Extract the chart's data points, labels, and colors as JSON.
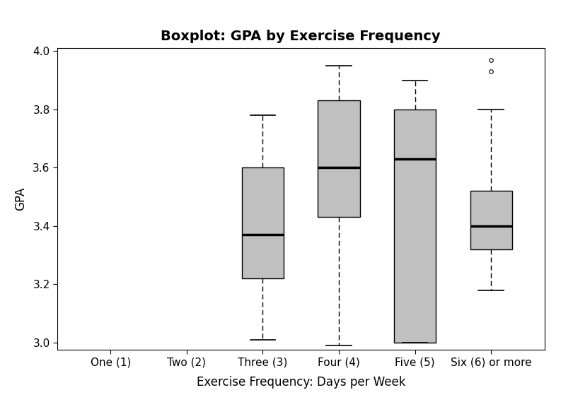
{
  "title": "Boxplot: GPA by Exercise Frequency",
  "xlabel": "Exercise Frequency: Days per Week",
  "ylabel": "GPA",
  "categories": [
    "One (1)",
    "Two (2)",
    "Three (3)",
    "Four (4)",
    "Five (5)",
    "Six (6) or more"
  ],
  "ylim": [
    2.975,
    4.01
  ],
  "yticks": [
    3.0,
    3.2,
    3.4,
    3.6,
    3.8,
    4.0
  ],
  "box_color": "#c0c0c0",
  "median_color": "#000000",
  "whisker_color": "#000000",
  "boxes": {
    "Three (3)": {
      "q1": 3.22,
      "median": 3.37,
      "q3": 3.6,
      "whisker_low": 3.01,
      "whisker_high": 3.78,
      "outliers": []
    },
    "Four (4)": {
      "q1": 3.43,
      "median": 3.6,
      "q3": 3.83,
      "whisker_low": 2.99,
      "whisker_high": 3.95,
      "outliers": []
    },
    "Five (5)": {
      "q1": 3.0,
      "median": 3.63,
      "q3": 3.8,
      "whisker_low": 3.0,
      "whisker_high": 3.9,
      "outliers": []
    },
    "Six (6) or more": {
      "q1": 3.32,
      "median": 3.4,
      "q3": 3.52,
      "whisker_low": 3.18,
      "whisker_high": 3.8,
      "outliers": [
        3.93,
        3.97
      ]
    }
  },
  "box_width": 0.55,
  "title_fontsize": 14,
  "axis_fontsize": 12,
  "tick_fontsize": 11,
  "background_color": "#ffffff"
}
